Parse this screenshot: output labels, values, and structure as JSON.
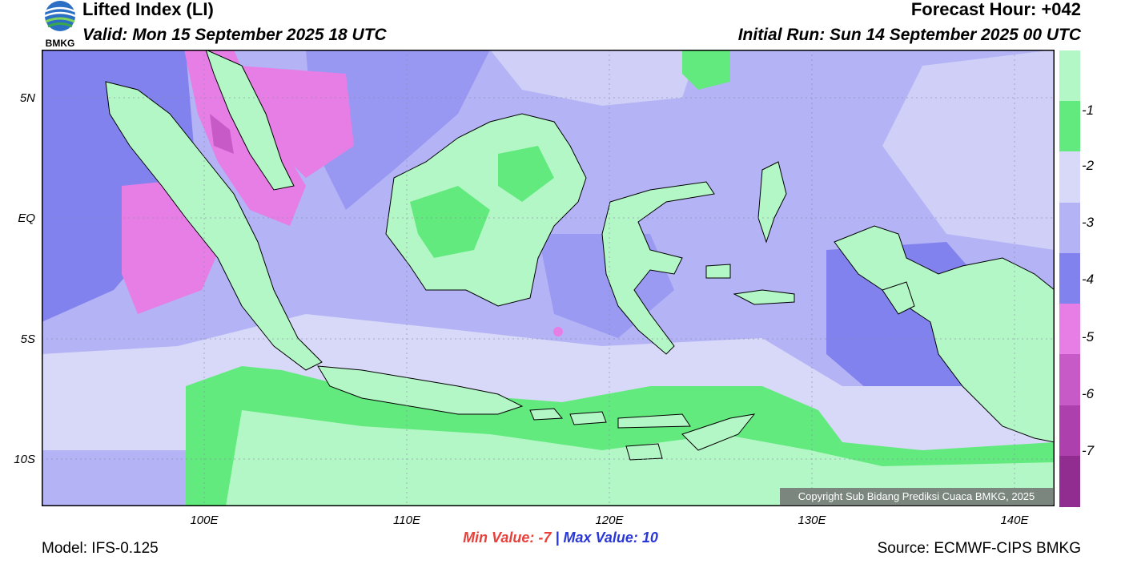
{
  "header": {
    "title": "Lifted Index (LI)",
    "valid": "Valid: Mon 15 September 2025 18 UTC",
    "forecast_hour": "Forecast Hour: +042",
    "initial_run": "Initial Run: Sun 14 September 2025 00 UTC"
  },
  "logo": {
    "text": "BMKG"
  },
  "map": {
    "lat_labels": [
      "5N",
      "EQ",
      "5S",
      "10S"
    ],
    "lon_labels": [
      "100E",
      "110E",
      "120E",
      "130E",
      "140E"
    ]
  },
  "colorbar": {
    "labels": [
      "-1",
      "-2",
      "-3",
      "-4",
      "-5",
      "-6",
      "-7"
    ],
    "colors": [
      "#b4f7c6",
      "#63ea7e",
      "#d8d8f8",
      "#b3b3f5",
      "#8282ee",
      "#e67ee6",
      "#c75ac7",
      "#ad40ad",
      "#912c91"
    ]
  },
  "stats": {
    "min_label": "Min Value:",
    "min_value": "-7",
    "separator": "|",
    "max_label": "Max Value:",
    "max_value": "10"
  },
  "footer": {
    "model": "Model: IFS-0.125",
    "source": "Source: ECMWF-CIPS BMKG",
    "copyright": "Copyright Sub Bidang Prediksi Cuaca BMKG, 2025"
  }
}
